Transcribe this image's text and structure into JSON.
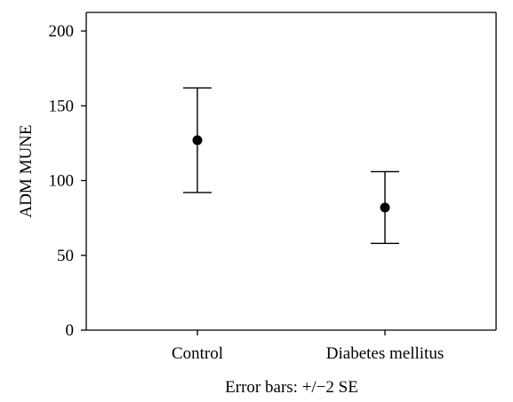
{
  "chart_data": {
    "type": "scatter",
    "categories": [
      "Control",
      "Diabetes mellitus"
    ],
    "series": [
      {
        "values": [
          127,
          82
        ],
        "error_lower": [
          92,
          58
        ],
        "error_upper": [
          162,
          106
        ]
      }
    ],
    "title": "",
    "xlabel": "Error bars: +/−2 SE",
    "ylabel": "ADM MUNE",
    "ylim": [
      0,
      200
    ],
    "yticks": [
      0,
      50,
      100,
      150,
      200
    ],
    "grid": false,
    "legend": "none",
    "colors": {
      "marker": "#000000",
      "axis": "#000000",
      "background": "#ffffff"
    }
  }
}
